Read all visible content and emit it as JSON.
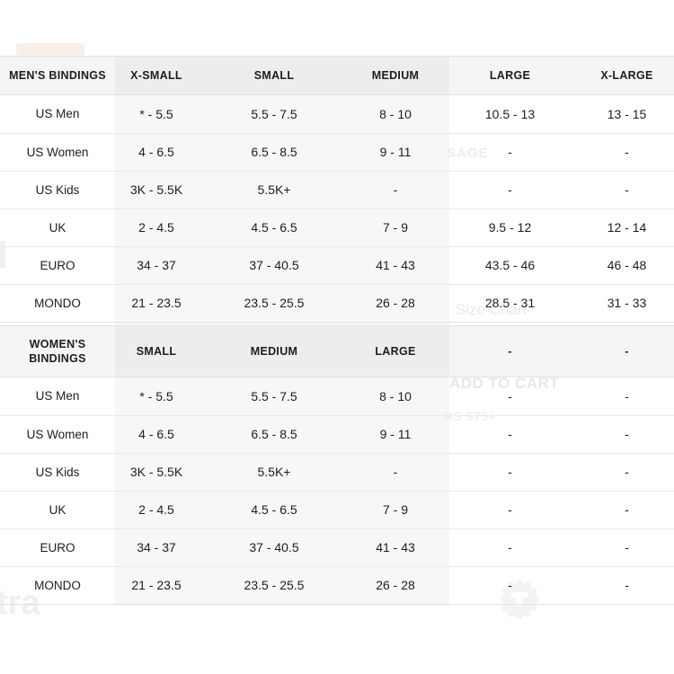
{
  "page": {
    "background_color": "#ffffff"
  },
  "colors": {
    "header_row_bg": "#f4f4f5",
    "row_divider": "#eaeaec",
    "table_border": "#e1e1e3",
    "text": "#1d1d1f",
    "underlay_band": "#f7f7f8",
    "watermark_text": "#ebebeb"
  },
  "tables": [
    {
      "title": "MEN'S BINDINGS",
      "header": [
        "MEN'S BINDINGS",
        "X-SMALL",
        "SMALL",
        "MEDIUM",
        "LARGE",
        "X-LARGE"
      ],
      "rows": [
        {
          "label": "US Men",
          "values": [
            "* - 5.5",
            "5.5 - 7.5",
            "8 - 10",
            "10.5 - 13",
            "13 - 15"
          ]
        },
        {
          "label": "US Women",
          "values": [
            "4 - 6.5",
            "6.5 - 8.5",
            "9 - 11",
            "-",
            "-"
          ]
        },
        {
          "label": "US Kids",
          "values": [
            "3K - 5.5K",
            "5.5K+",
            "-",
            "-",
            "-"
          ]
        },
        {
          "label": "UK",
          "values": [
            "2 - 4.5",
            "4.5 - 6.5",
            "7 - 9",
            "9.5 - 12",
            "12 - 14"
          ]
        },
        {
          "label": "EURO",
          "values": [
            "34 - 37",
            "37 - 40.5",
            "41 - 43",
            "43.5 - 46",
            "46 - 48"
          ]
        },
        {
          "label": "MONDO",
          "values": [
            "21 - 23.5",
            "23.5 - 25.5",
            "26 - 28",
            "28.5 - 31",
            "31 - 33"
          ]
        }
      ]
    },
    {
      "title": "WOMEN'S BINDINGS",
      "header": [
        "WOMEN'S BINDINGS",
        "SMALL",
        "MEDIUM",
        "LARGE",
        "-",
        "-"
      ],
      "rows": [
        {
          "label": "US Men",
          "values": [
            "* - 5.5",
            "5.5 - 7.5",
            "8 - 10",
            "-",
            "-"
          ]
        },
        {
          "label": "US Women",
          "values": [
            "4 - 6.5",
            "6.5 - 8.5",
            "9 - 11",
            "-",
            "-"
          ]
        },
        {
          "label": "US Kids",
          "values": [
            "3K - 5.5K",
            "5.5K+",
            "-",
            "-",
            "-"
          ]
        },
        {
          "label": "UK",
          "values": [
            "2 - 4.5",
            "4.5 - 6.5",
            "7 - 9",
            "-",
            "-"
          ]
        },
        {
          "label": "EURO",
          "values": [
            "34 - 37",
            "37 - 40.5",
            "41 - 43",
            "-",
            "-"
          ]
        },
        {
          "label": "MONDO",
          "values": [
            "21 - 23.5",
            "23.5 - 25.5",
            "26 - 28",
            "-",
            "-"
          ]
        }
      ]
    }
  ],
  "watermarks": {
    "sage_text": "SAGE",
    "size_chart_text": "Size Chart",
    "add_to_cart_text": "ADD TO CART",
    "shipping_fragment_text": "RS $75+",
    "bottom_left_fragment_text": "tra"
  }
}
